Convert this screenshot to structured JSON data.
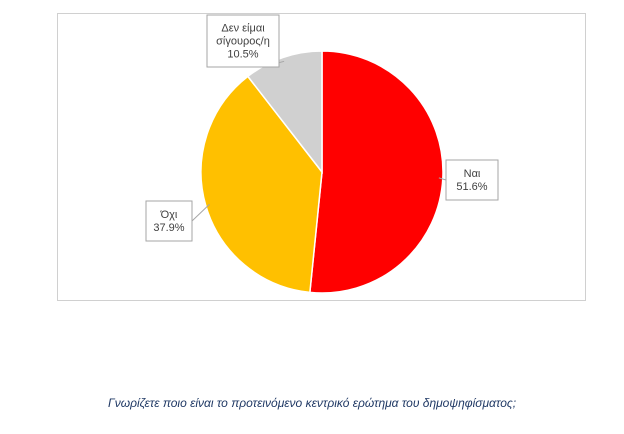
{
  "chart_data": {
    "type": "pie",
    "title": "",
    "slices": [
      {
        "label": "Ναι",
        "value": 51.6,
        "display": "51.6%",
        "color": "#ff0000"
      },
      {
        "label": "Όχι",
        "value": 37.9,
        "display": "37.9%",
        "color": "#ffc000"
      },
      {
        "label": "Δεν είμαι σίγουρος/η",
        "label_lines": [
          "Δεν είμαι",
          "σίγουρος/η"
        ],
        "value": 10.5,
        "display": "10.5%",
        "color": "#d0d0d0"
      }
    ],
    "start": "12 o'clock",
    "direction": "clockwise",
    "slice_border_color": "#ffffff",
    "label_style": "callout"
  },
  "caption": "Γνωρίζετε ποιο είναι το προτεινόμενο κεντρικό ερώτημα του δημοψηφίσματος;"
}
